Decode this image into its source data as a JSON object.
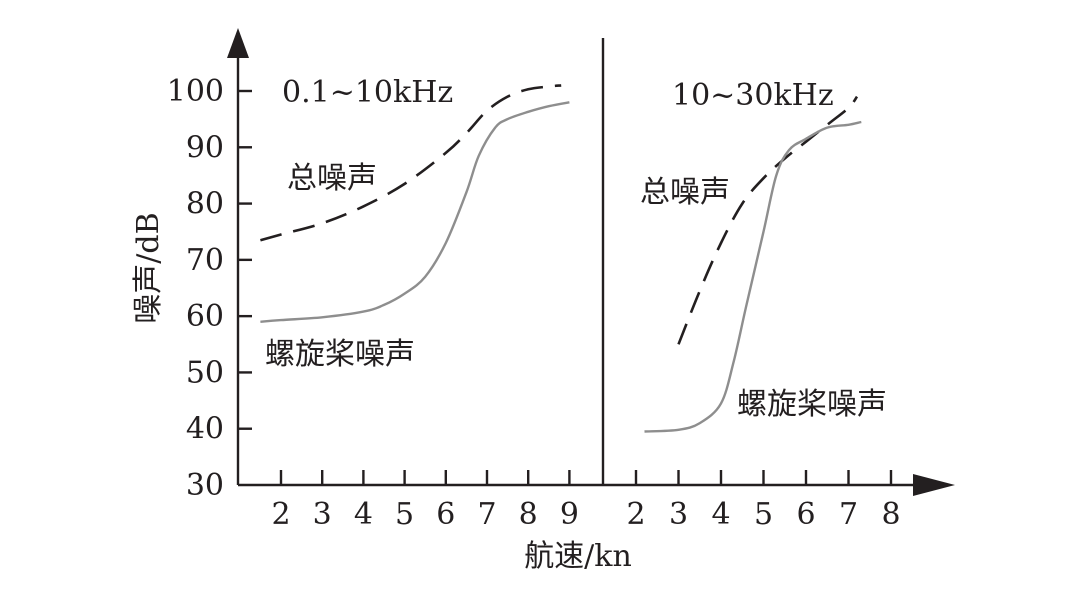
{
  "chart_data": {
    "type": "line",
    "xlabel": "航速/kn",
    "ylabel": "噪声/dB",
    "grid": false,
    "y_ticks": [
      "30",
      "40",
      "50",
      "60",
      "70",
      "80",
      "90",
      "100"
    ],
    "ylim": [
      30,
      100
    ],
    "panels": [
      {
        "title": "0.1~10kHz",
        "x_ticks": [
          "2",
          "3",
          "4",
          "5",
          "6",
          "7",
          "8",
          "9"
        ],
        "xlim": [
          2,
          9
        ],
        "series": [
          {
            "name": "总噪声",
            "style": "dashed",
            "color": "#231f20",
            "x": [
              1.5,
              2,
              3,
              4,
              5,
              6,
              6.5,
              7,
              7.5,
              8,
              8.5,
              8.8
            ],
            "y": [
              73.5,
              74.5,
              76.5,
              79.5,
              83.5,
              89,
              92.5,
              96.5,
              99,
              100.3,
              100.8,
              101
            ]
          },
          {
            "name": "螺旋桨噪声",
            "style": "solid",
            "color": "#8e8e8e",
            "x": [
              1.5,
              2,
              3,
              4,
              4.5,
              5,
              5.5,
              6,
              6.5,
              6.8,
              7.2,
              7.5,
              8,
              8.5,
              9
            ],
            "y": [
              59,
              59.3,
              59.8,
              60.8,
              62,
              64,
              67,
              73,
              82,
              88.5,
              93.5,
              95,
              96.3,
              97.3,
              98
            ]
          }
        ]
      },
      {
        "title": "10~30kHz",
        "x_ticks": [
          "2",
          "3",
          "4",
          "5",
          "6",
          "7",
          "8"
        ],
        "xlim": [
          2,
          8
        ],
        "series": [
          {
            "name": "总噪声",
            "style": "dashed",
            "color": "#231f20",
            "x": [
              3,
              3.5,
              4,
              4.5,
              5,
              5.5,
              6,
              6.5,
              7,
              7.2
            ],
            "y": [
              55,
              64.5,
              73,
              80,
              84.5,
              88,
              91,
              94,
              97,
              99
            ]
          },
          {
            "name": "螺旋桨噪声",
            "style": "solid",
            "color": "#8e8e8e",
            "x": [
              2.2,
              3,
              3.5,
              4,
              4.3,
              4.6,
              5,
              5.3,
              5.6,
              6,
              6.5,
              7,
              7.3
            ],
            "y": [
              39.5,
              39.8,
              41,
              44.5,
              52,
              62,
              75,
              85,
              89.5,
              91.5,
              93.5,
              94,
              94.5
            ]
          }
        ]
      }
    ]
  }
}
